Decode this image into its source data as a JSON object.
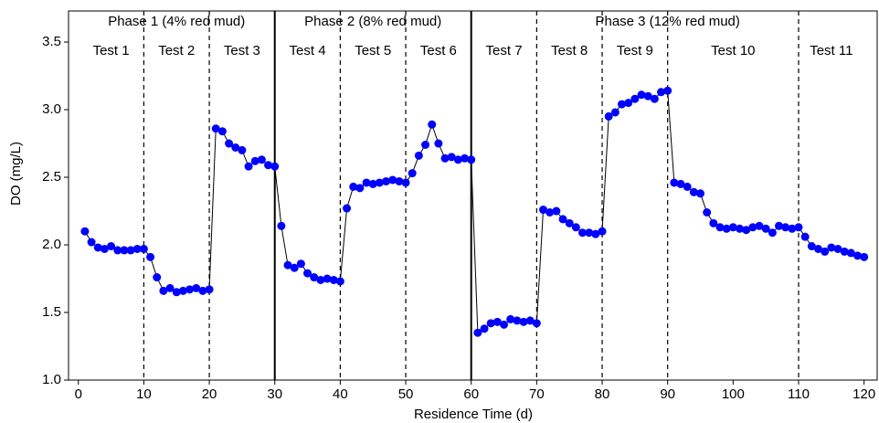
{
  "chart_data": {
    "type": "line",
    "xlabel": "Residence Time (d)",
    "ylabel": "DO (mg/L)",
    "x": [
      1,
      2,
      3,
      4,
      5,
      6,
      7,
      8,
      9,
      10,
      11,
      12,
      13,
      14,
      15,
      16,
      17,
      18,
      19,
      20,
      21,
      22,
      23,
      24,
      25,
      26,
      27,
      28,
      29,
      30,
      31,
      32,
      33,
      34,
      35,
      36,
      37,
      38,
      39,
      40,
      41,
      42,
      43,
      44,
      45,
      46,
      47,
      48,
      49,
      50,
      51,
      52,
      53,
      54,
      55,
      56,
      57,
      58,
      59,
      60,
      61,
      62,
      63,
      64,
      65,
      66,
      67,
      68,
      69,
      70,
      71,
      72,
      73,
      74,
      75,
      76,
      77,
      78,
      79,
      80,
      81,
      82,
      83,
      84,
      85,
      86,
      87,
      88,
      89,
      90,
      91,
      92,
      93,
      94,
      95,
      96,
      97,
      98,
      99,
      100,
      101,
      102,
      103,
      104,
      105,
      106,
      107,
      108,
      109,
      110,
      111,
      112,
      113,
      114,
      115,
      116,
      117,
      118,
      119,
      120
    ],
    "values": [
      2.1,
      2.02,
      1.98,
      1.97,
      1.99,
      1.96,
      1.96,
      1.96,
      1.97,
      1.97,
      1.91,
      1.76,
      1.66,
      1.68,
      1.65,
      1.66,
      1.67,
      1.68,
      1.66,
      1.67,
      2.86,
      2.84,
      2.75,
      2.72,
      2.7,
      2.58,
      2.62,
      2.63,
      2.59,
      2.58,
      2.14,
      1.85,
      1.83,
      1.86,
      1.79,
      1.76,
      1.74,
      1.75,
      1.74,
      1.73,
      2.27,
      2.43,
      2.42,
      2.46,
      2.45,
      2.46,
      2.47,
      2.48,
      2.47,
      2.46,
      2.53,
      2.66,
      2.74,
      2.89,
      2.75,
      2.64,
      2.65,
      2.63,
      2.64,
      2.63,
      1.35,
      1.38,
      1.42,
      1.43,
      1.41,
      1.45,
      1.44,
      1.43,
      1.44,
      1.42,
      2.26,
      2.24,
      2.25,
      2.19,
      2.16,
      2.13,
      2.09,
      2.09,
      2.08,
      2.1,
      2.95,
      2.98,
      3.04,
      3.05,
      3.08,
      3.11,
      3.1,
      3.08,
      3.13,
      3.14,
      2.46,
      2.45,
      2.43,
      2.39,
      2.38,
      2.24,
      2.16,
      2.13,
      2.12,
      2.13,
      2.12,
      2.11,
      2.13,
      2.14,
      2.12,
      2.09,
      2.14,
      2.13,
      2.12,
      2.13,
      2.06,
      1.99,
      1.97,
      1.95,
      1.98,
      1.97,
      1.95,
      1.94,
      1.92,
      1.91
    ],
    "color": "#0000ff",
    "line_color": "#000000",
    "xlim": [
      -1.5,
      122
    ],
    "xticks": [
      0,
      10,
      20,
      30,
      40,
      50,
      60,
      70,
      80,
      90,
      100,
      110,
      120
    ],
    "ylim": [
      1,
      3.73
    ],
    "yticks": [
      {
        "value": 1,
        "label": "1.0"
      },
      1.5,
      {
        "value": 2,
        "label": "2.0"
      },
      2.5,
      {
        "value": 3,
        "label": "3.0"
      },
      3.5
    ],
    "phases": [
      {
        "label": "Phase 1 (4% red mud)",
        "start": 0,
        "end": 30
      },
      {
        "label": "Phase 2 (8% red mud)",
        "start": 30,
        "end": 60
      },
      {
        "label": "Phase 3 (12% red mud)",
        "start": 60,
        "end": 120
      }
    ],
    "tests": [
      {
        "label": "Test 1",
        "start": 0,
        "end": 10
      },
      {
        "label": "Test 2",
        "start": 10,
        "end": 20
      },
      {
        "label": "Test 3",
        "start": 20,
        "end": 30
      },
      {
        "label": "Test 4",
        "start": 30,
        "end": 40
      },
      {
        "label": "Test 5",
        "start": 40,
        "end": 50
      },
      {
        "label": "Test 6",
        "start": 50,
        "end": 60
      },
      {
        "label": "Test 7",
        "start": 60,
        "end": 70
      },
      {
        "label": "Test 8",
        "start": 70,
        "end": 80
      },
      {
        "label": "Test 9",
        "start": 80,
        "end": 90
      },
      {
        "label": "Test 10",
        "start": 90,
        "end": 110
      },
      {
        "label": "Test 11",
        "start": 110,
        "end": 120
      }
    ]
  }
}
